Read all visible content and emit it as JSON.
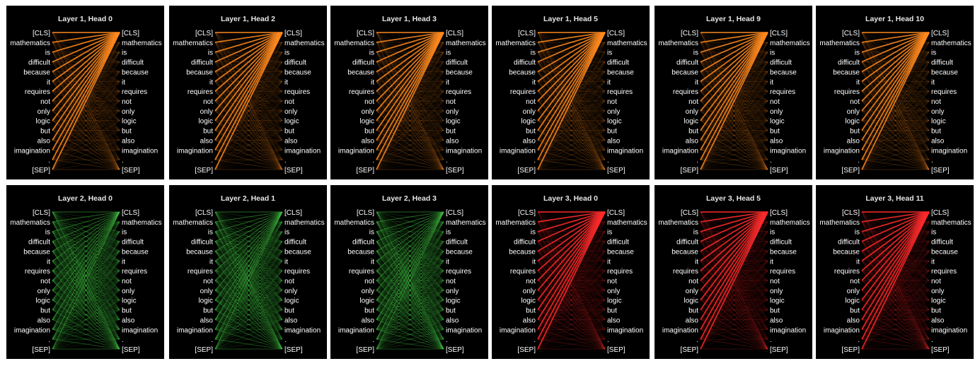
{
  "tokens": [
    "[CLS]",
    "mathematics",
    "is",
    "difficult",
    "because",
    "it",
    "requires",
    "not",
    "only",
    "logic",
    "but",
    "also",
    "imagination",
    ".",
    "[SEP]"
  ],
  "panels": [
    {
      "title": "Layer 1, Head 0",
      "color": "#ff8a1e",
      "pattern": "cls_focus"
    },
    {
      "title": "Layer 1, Head 2",
      "color": "#ff8a1e",
      "pattern": "cls_focus"
    },
    {
      "title": "Layer 1, Head 3",
      "color": "#ff8a1e",
      "pattern": "cls_focus"
    },
    {
      "title": "Layer 1, Head 5",
      "color": "#ff8a1e",
      "pattern": "cls_focus"
    },
    {
      "title": "Layer 1, Head 9",
      "color": "#ff8a1e",
      "pattern": "cls_focus"
    },
    {
      "title": "Layer 1, Head 10",
      "color": "#ff8a1e",
      "pattern": "cls_focus"
    },
    {
      "title": "Layer 2, Head 0",
      "color": "#3fbf3f",
      "pattern": "diffuse"
    },
    {
      "title": "Layer 2, Head 1",
      "color": "#3fbf3f",
      "pattern": "diffuse"
    },
    {
      "title": "Layer 2, Head 3",
      "color": "#3fbf3f",
      "pattern": "diffuse"
    },
    {
      "title": "Layer 3, Head 0",
      "color": "#ff2a2a",
      "pattern": "cls_focus"
    },
    {
      "title": "Layer 3, Head 5",
      "color": "#ff2a2a",
      "pattern": "cls_focus"
    },
    {
      "title": "Layer 3, Head 11",
      "color": "#ff2a2a",
      "pattern": "cls_focus"
    }
  ]
}
